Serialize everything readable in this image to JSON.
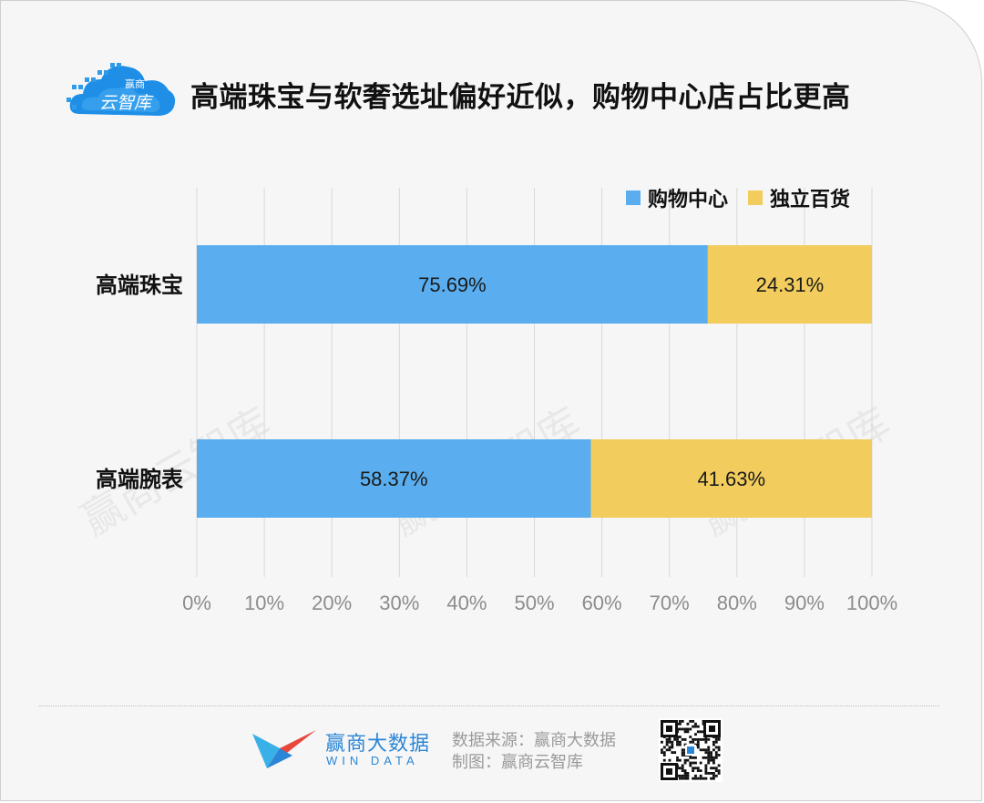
{
  "header": {
    "logo_text_top": "赢商",
    "logo_text_main": "云智库",
    "title": "高端珠宝与软奢选址偏好近似，购物中心店占比更高"
  },
  "chart_data": {
    "type": "bar",
    "orientation": "horizontal",
    "stacked": true,
    "categories": [
      "高端珠宝",
      "高端腕表"
    ],
    "series": [
      {
        "name": "购物中心",
        "values": [
          75.69,
          58.37
        ],
        "labels": [
          "75.69%",
          "58.37%"
        ],
        "color": "#5aaeef"
      },
      {
        "name": "独立百货",
        "values": [
          24.31,
          41.63
        ],
        "labels": [
          "24.31%",
          "41.63%"
        ],
        "color": "#f2cd5e"
      }
    ],
    "xlim": [
      0,
      100
    ],
    "x_ticks": [
      "0%",
      "10%",
      "20%",
      "30%",
      "40%",
      "50%",
      "60%",
      "70%",
      "80%",
      "90%",
      "100%"
    ],
    "grid": true,
    "legend_position": "top-right",
    "watermark": "赢商云智库"
  },
  "footer": {
    "brand_cn": "赢商大数据",
    "brand_en": "WIN DATA",
    "source_line": "数据来源：赢商大数据",
    "credit_line": "制图：赢商云智库"
  }
}
